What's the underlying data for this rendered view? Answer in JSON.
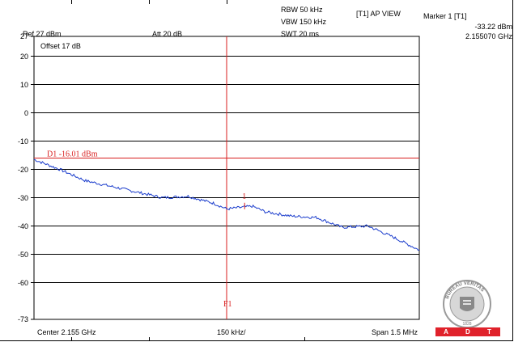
{
  "header": {
    "ref": "Ref 27 dBm",
    "att": "Att  20 dB",
    "rbw": "RBW 50 kHz",
    "vbw": "VBW 150 kHz",
    "swt": "SWT 20 ms",
    "trace": "[T1] AP VIEW",
    "marker_title": "Marker 1 [T1]",
    "marker_level": "-33.22 dBm",
    "marker_freq": "2.155070 GHz"
  },
  "footer": {
    "center": "Center 2.155 GHz",
    "div": "150 kHz/",
    "span": "Span 1.5 MHz"
  },
  "logo": {
    "text": "BUREAU VERITAS",
    "year": "1828",
    "brand_letters": [
      "A",
      "D",
      "T"
    ]
  },
  "chart_data": {
    "type": "line",
    "xlim": [
      2.15425,
      2.15575
    ],
    "ylim": [
      -73,
      27
    ],
    "ytick_labels": [
      "27",
      "20",
      "10",
      "0",
      "-10",
      "-20",
      "-30",
      "-40",
      "-50",
      "-60",
      "-73"
    ],
    "ytick_values": [
      27,
      20,
      10,
      0,
      -10,
      -20,
      -30,
      -40,
      -50,
      -60,
      -73
    ],
    "grid": true,
    "annotations": {
      "offset": "Offset 17 dB",
      "display_line_label": "D1 -16.01 dBm",
      "display_line_value": -16.01,
      "marker_label": "1",
      "marker_x": 2.15507,
      "marker_y": -33.22,
      "f1_label": "F1",
      "f1_x": 2.155
    },
    "series": [
      {
        "color": "#1a3ccc",
        "x": [
          2.15425,
          2.15435,
          2.15445,
          2.15455,
          2.15465,
          2.15475,
          2.15485,
          2.15495,
          2.155,
          2.15505,
          2.1551,
          2.15515,
          2.15525,
          2.15535,
          2.15545,
          2.15555,
          2.15565,
          2.15575
        ],
        "y": [
          -16.5,
          -20.0,
          -24.0,
          -26.0,
          -28.0,
          -30.0,
          -29.5,
          -32.0,
          -34.0,
          -33.5,
          -33.0,
          -35.0,
          -36.5,
          -37.0,
          -40.5,
          -40.0,
          -44.0,
          -48.5
        ]
      }
    ]
  }
}
